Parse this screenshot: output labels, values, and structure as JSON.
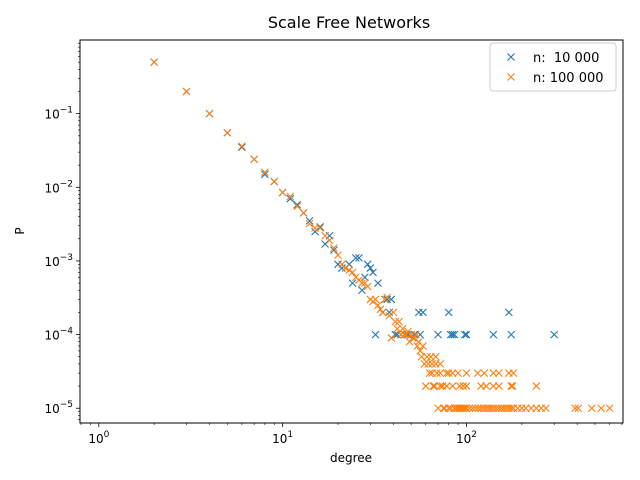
{
  "chart_data": {
    "type": "scatter",
    "title": "Scale Free Networks",
    "xlabel": "degree",
    "ylabel": "P",
    "xscale": "log",
    "yscale": "log",
    "xlim": [
      0.79,
      710
    ],
    "ylim": [
      6.3e-06,
      1.0
    ],
    "grid": false,
    "legend_position": "top-right",
    "marker": "x",
    "x_ticks": [
      {
        "value": 1,
        "base": "10",
        "exp": "0"
      },
      {
        "value": 10,
        "base": "10",
        "exp": "1"
      },
      {
        "value": 100,
        "base": "10",
        "exp": "2"
      }
    ],
    "y_ticks": [
      {
        "value": 0.1,
        "base": "10",
        "exp": "−1"
      },
      {
        "value": 0.01,
        "base": "10",
        "exp": "−2"
      },
      {
        "value": 0.001,
        "base": "10",
        "exp": "−3"
      },
      {
        "value": 0.0001,
        "base": "10",
        "exp": "−4"
      },
      {
        "value": 1e-05,
        "base": "10",
        "exp": "−5"
      }
    ],
    "series": [
      {
        "name": "n:  10 000",
        "color": "#1f77b4",
        "x": [
          2,
          3,
          4,
          5,
          6,
          7,
          8,
          9,
          10,
          11,
          12,
          13,
          14,
          15,
          16,
          17,
          18,
          19,
          20,
          21,
          22,
          23,
          24,
          25,
          26,
          27,
          28,
          29,
          30,
          31,
          32,
          33,
          35,
          36,
          37,
          38,
          39,
          41,
          42,
          44,
          46,
          48,
          50,
          52,
          55,
          56,
          58,
          70,
          80,
          82,
          84,
          86,
          98,
          100,
          140,
          170,
          175,
          300
        ],
        "y": [
          0.5,
          0.2,
          0.1,
          0.055,
          0.035,
          0.024,
          0.015,
          0.012,
          0.0085,
          0.007,
          0.0058,
          0.0045,
          0.0035,
          0.0025,
          0.0029,
          0.0017,
          0.0022,
          0.0014,
          0.0009,
          0.0008,
          0.0008,
          0.0009,
          0.0005,
          0.0011,
          0.0011,
          0.0004,
          0.0006,
          0.0009,
          0.0008,
          0.0007,
          0.0001,
          0.0005,
          0.0002,
          0.0003,
          0.0003,
          0.0002,
          0.0003,
          0.0001,
          0.0001,
          0.0001,
          0.0001,
          0.0001,
          0.0001,
          0.0001,
          0.0002,
          0.0001,
          0.0002,
          0.0001,
          0.0002,
          0.0001,
          0.0001,
          0.0001,
          0.0001,
          0.0001,
          0.0001,
          0.0002,
          0.0001,
          0.0001
        ]
      },
      {
        "name": "n: 100 000",
        "color": "#ff7f0e",
        "x": [
          2,
          3,
          4,
          5,
          6,
          7,
          8,
          9,
          10,
          11,
          12,
          13,
          14,
          15,
          16,
          17,
          18,
          19,
          20,
          21,
          22,
          23,
          24,
          25,
          26,
          27,
          28,
          29,
          30,
          31,
          32,
          33,
          34,
          35,
          36,
          37,
          38,
          39,
          40,
          41,
          42,
          43,
          44,
          45,
          46,
          47,
          48,
          49,
          50,
          51,
          52,
          53,
          54,
          55,
          56,
          57,
          58,
          59,
          60,
          61,
          62,
          63,
          64,
          65,
          66,
          67,
          68,
          69,
          70,
          72,
          74,
          75,
          76,
          78,
          80,
          82,
          84,
          86,
          88,
          90,
          92,
          94,
          96,
          98,
          100,
          104,
          108,
          112,
          116,
          120,
          124,
          128,
          132,
          136,
          140,
          145,
          150,
          155,
          160,
          165,
          170,
          175,
          180,
          190,
          200,
          210,
          225,
          240,
          255,
          270,
          390,
          405,
          480,
          540,
          600,
          72,
          80,
          90,
          100,
          115,
          125,
          140,
          150,
          170,
          180,
          240,
          65,
          68,
          72,
          78,
          84,
          92,
          96,
          100,
          120,
          128,
          140,
          150,
          175,
          178
        ],
        "y": [
          0.5,
          0.2,
          0.1,
          0.055,
          0.036,
          0.024,
          0.016,
          0.012,
          0.0085,
          0.0075,
          0.0055,
          0.0045,
          0.0032,
          0.0028,
          0.0028,
          0.0022,
          0.0019,
          0.0015,
          0.0012,
          0.0009,
          0.0008,
          0.00075,
          0.0007,
          0.0006,
          0.00055,
          0.0005,
          0.0005,
          0.00045,
          0.0003,
          0.00028,
          0.0003,
          0.00025,
          0.00022,
          0.0002,
          0.0003,
          0.00032,
          0.00018,
          9e-05,
          0.0002,
          0.00015,
          0.00012,
          0.00015,
          0.0001,
          0.00012,
          0.0001,
          0.0001,
          0.00011,
          8e-05,
          0.0001,
          9e-05,
          9e-05,
          0.0001,
          7e-05,
          8e-05,
          6e-05,
          5e-05,
          7e-05,
          4e-05,
          2e-05,
          5e-05,
          4e-05,
          3e-05,
          5e-05,
          3e-05,
          2e-05,
          2e-05,
          4e-05,
          3e-05,
          1e-05,
          2e-05,
          2e-05,
          1e-05,
          1e-05,
          2e-05,
          1e-05,
          1e-05,
          2e-05,
          1e-05,
          1e-05,
          1e-05,
          1e-05,
          1e-05,
          1e-05,
          1e-05,
          1e-05,
          1e-05,
          1e-05,
          1e-05,
          1e-05,
          1e-05,
          1e-05,
          1e-05,
          1e-05,
          1e-05,
          1e-05,
          1e-05,
          1e-05,
          1e-05,
          1e-05,
          1e-05,
          1e-05,
          1e-05,
          1e-05,
          1e-05,
          1e-05,
          1e-05,
          1e-05,
          1e-05,
          1e-05,
          1e-05,
          1e-05,
          1e-05,
          1e-05,
          1e-05,
          1e-05,
          3e-05,
          3e-05,
          3e-05,
          3e-05,
          3e-05,
          3e-05,
          3e-05,
          3e-05,
          3e-05,
          3e-05,
          2e-05,
          4e-05,
          5e-05,
          4e-05,
          3e-05,
          3e-05,
          2e-05,
          2e-05,
          2e-05,
          2e-05,
          2e-05,
          2e-05,
          2e-05,
          2e-05,
          2e-05
        ]
      }
    ]
  }
}
